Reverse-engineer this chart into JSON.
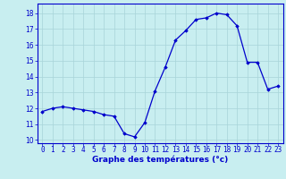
{
  "hours": [
    0,
    1,
    2,
    3,
    4,
    5,
    6,
    7,
    8,
    9,
    10,
    11,
    12,
    13,
    14,
    15,
    16,
    17,
    18,
    19,
    20,
    21,
    22,
    23
  ],
  "temps": [
    11.8,
    12.0,
    12.1,
    12.0,
    11.9,
    11.8,
    11.6,
    11.5,
    10.4,
    10.2,
    11.1,
    13.1,
    14.6,
    16.3,
    16.9,
    17.6,
    17.7,
    18.0,
    17.9,
    17.2,
    14.9,
    14.9,
    13.2,
    13.4
  ],
  "line_color": "#0000cc",
  "marker": "D",
  "marker_size": 1.8,
  "bg_color": "#c8eef0",
  "grid_color": "#a8d4d8",
  "xlabel": "Graphe des températures (°c)",
  "xlabel_color": "#0000cc",
  "xlabel_fontsize": 6.5,
  "tick_color": "#0000cc",
  "tick_fontsize": 5.5,
  "ylim": [
    9.8,
    18.6
  ],
  "yticks": [
    10,
    11,
    12,
    13,
    14,
    15,
    16,
    17,
    18
  ],
  "xlim": [
    -0.5,
    23.5
  ]
}
